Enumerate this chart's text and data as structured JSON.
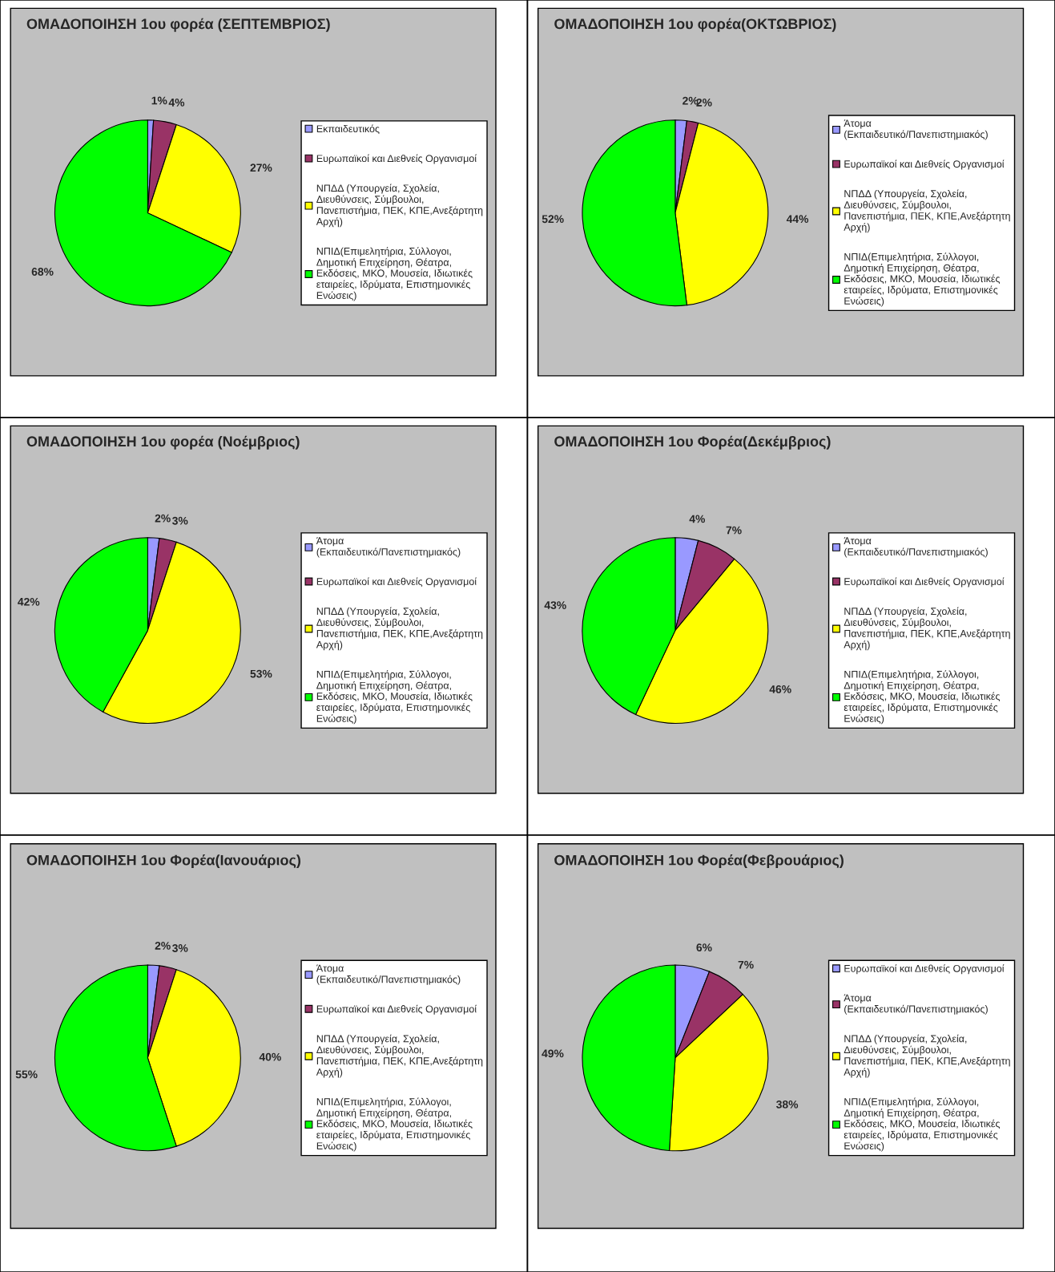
{
  "chart_data": [
    {
      "type": "pie",
      "title": "ΟΜΑΔΟΠΟΙΗΣΗ 1ου φορέα (ΣΕΠΤΕΜΒΡΙΟΣ)",
      "categories": [
        "Εκπαιδευτικός",
        "Ευρωπαϊκοί και Διεθνείς Οργανισμοί",
        "ΝΠΔΔ (Υπουργεία, Σχολεία, Διευθύνσεις, Σύμβουλοι, Πανεπιστήμια, ΠΕΚ, ΚΠΕ,Ανεξάρτητη Αρχή)",
        "ΝΠΙΔ(Επιμελητήρια, Σύλλογοι, Δημοτική Επιχείρηση, Θέατρα, Εκδόσεις, ΜΚΟ, Μουσεία, Ιδιωτικές εταιρείες, Ιδρύματα, Επιστημονικές Ενώσεις)"
      ],
      "values": [
        1,
        4,
        27,
        68
      ],
      "value_labels": [
        "1%",
        "4%",
        "27%",
        "68%"
      ],
      "colors": [
        "#9999ff",
        "#993366",
        "#ffff00",
        "#00ff00"
      ],
      "legend": "right"
    },
    {
      "type": "pie",
      "title": "ΟΜΑΔΟΠΟΙΗΣΗ 1ου φορέα(ΟΚΤΩΒΡΙΟΣ)",
      "categories": [
        "Άτομα (Εκπαιδευτικό/Πανεπιστημιακός)",
        "Ευρωπαϊκοί και Διεθνείς Οργανισμοί",
        "ΝΠΔΔ (Υπουργεία, Σχολεία, Διευθύνσεις, Σύμβουλοι, Πανεπιστήμια, ΠΕΚ, ΚΠΕ,Ανεξάρτητη Αρχή)",
        "ΝΠΙΔ(Επιμελητήρια, Σύλλογοι, Δημοτική Επιχείρηση, Θέατρα, Εκδόσεις, ΜΚΟ, Μουσεία, Ιδιωτικές εταιρείες, Ιδρύματα, Επιστημονικές Ενώσεις)"
      ],
      "values": [
        2,
        2,
        44,
        52
      ],
      "value_labels": [
        "2%",
        "2%",
        "44%",
        "52%"
      ],
      "colors": [
        "#9999ff",
        "#993366",
        "#ffff00",
        "#00ff00"
      ],
      "legend": "right"
    },
    {
      "type": "pie",
      "title": "ΟΜΑΔΟΠΟΙΗΣΗ 1ου φορέα (Νοέμβριος)",
      "categories": [
        "Άτομα (Εκπαιδευτικό/Πανεπιστημιακός)",
        "Ευρωπαϊκοί και Διεθνείς Οργανισμοί",
        "ΝΠΔΔ (Υπουργεία, Σχολεία, Διευθύνσεις, Σύμβουλοι, Πανεπιστήμια, ΠΕΚ, ΚΠΕ,Ανεξάρτητη Αρχή)",
        "ΝΠΙΔ(Επιμελητήρια, Σύλλογοι, Δημοτική Επιχείρηση, Θέατρα, Εκδόσεις, ΜΚΟ, Μουσεία, Ιδιωτικές εταιρείες, Ιδρύματα, Επιστημονικές Ενώσεις)"
      ],
      "values": [
        2,
        3,
        53,
        42
      ],
      "value_labels": [
        "2%",
        "3%",
        "53%",
        "42%"
      ],
      "colors": [
        "#9999ff",
        "#993366",
        "#ffff00",
        "#00ff00"
      ],
      "legend": "right"
    },
    {
      "type": "pie",
      "title": "ΟΜΑΔΟΠΟΙΗΣΗ 1ου Φορέα(Δεκέμβριος)",
      "categories": [
        "Άτομα (Εκπαιδευτικό/Πανεπιστημιακός)",
        "Ευρωπαϊκοί και Διεθνείς Οργανισμοί",
        "ΝΠΔΔ (Υπουργεία, Σχολεία, Διευθύνσεις, Σύμβουλοι, Πανεπιστήμια, ΠΕΚ, ΚΠΕ,Ανεξάρτητη Αρχή)",
        "ΝΠΙΔ(Επιμελητήρια, Σύλλογοι, Δημοτική Επιχείρηση, Θέατρα, Εκδόσεις, ΜΚΟ, Μουσεία, Ιδιωτικές εταιρείες, Ιδρύματα, Επιστημονικές Ενώσεις)"
      ],
      "values": [
        4,
        7,
        46,
        43
      ],
      "value_labels": [
        "4%",
        "7%",
        "46%",
        "43%"
      ],
      "colors": [
        "#9999ff",
        "#993366",
        "#ffff00",
        "#00ff00"
      ],
      "legend": "right"
    },
    {
      "type": "pie",
      "title": "ΟΜΑΔΟΠΟΙΗΣΗ 1ου Φορέα(Ιανουάριος)",
      "categories": [
        "Άτομα (Εκπαιδευτικό/Πανεπιστημιακός)",
        "Ευρωπαϊκοί και Διεθνείς Οργανισμοί",
        "ΝΠΔΔ (Υπουργεία, Σχολεία, Διευθύνσεις, Σύμβουλοι, Πανεπιστήμια, ΠΕΚ, ΚΠΕ,Ανεξάρτητη Αρχή)",
        "ΝΠΙΔ(Επιμελητήρια, Σύλλογοι, Δημοτική Επιχείρηση, Θέατρα, Εκδόσεις, ΜΚΟ, Μουσεία, Ιδιωτικές εταιρείες, Ιδρύματα, Επιστημονικές Ενώσεις)"
      ],
      "values": [
        2,
        3,
        40,
        55
      ],
      "value_labels": [
        "2%",
        "3%",
        "40%",
        "55%"
      ],
      "colors": [
        "#9999ff",
        "#993366",
        "#ffff00",
        "#00ff00"
      ],
      "legend": "right"
    },
    {
      "type": "pie",
      "title": "ΟΜΑΔΟΠΟΙΗΣΗ 1ου Φορέα(Φεβρουάριος)",
      "categories": [
        "Ευρωπαϊκοί και Διεθνείς Οργανισμοί",
        "Άτομα (Εκπαιδευτικό/Πανεπιστημιακός)",
        "ΝΠΔΔ (Υπουργεία, Σχολεία, Διευθύνσεις, Σύμβουλοι, Πανεπιστήμια, ΠΕΚ, ΚΠΕ,Ανεξάρτητη Αρχή)",
        "ΝΠΙΔ(Επιμελητήρια, Σύλλογοι, Δημοτική Επιχείρηση, Θέατρα, Εκδόσεις, ΜΚΟ, Μουσεία, Ιδιωτικές εταιρείες, Ιδρύματα, Επιστημονικές Ενώσεις)"
      ],
      "values": [
        6,
        7,
        38,
        49
      ],
      "value_labels": [
        "6%",
        "7%",
        "38%",
        "49%"
      ],
      "colors": [
        "#9999ff",
        "#993366",
        "#ffff00",
        "#00ff00"
      ],
      "legend": "right"
    }
  ]
}
